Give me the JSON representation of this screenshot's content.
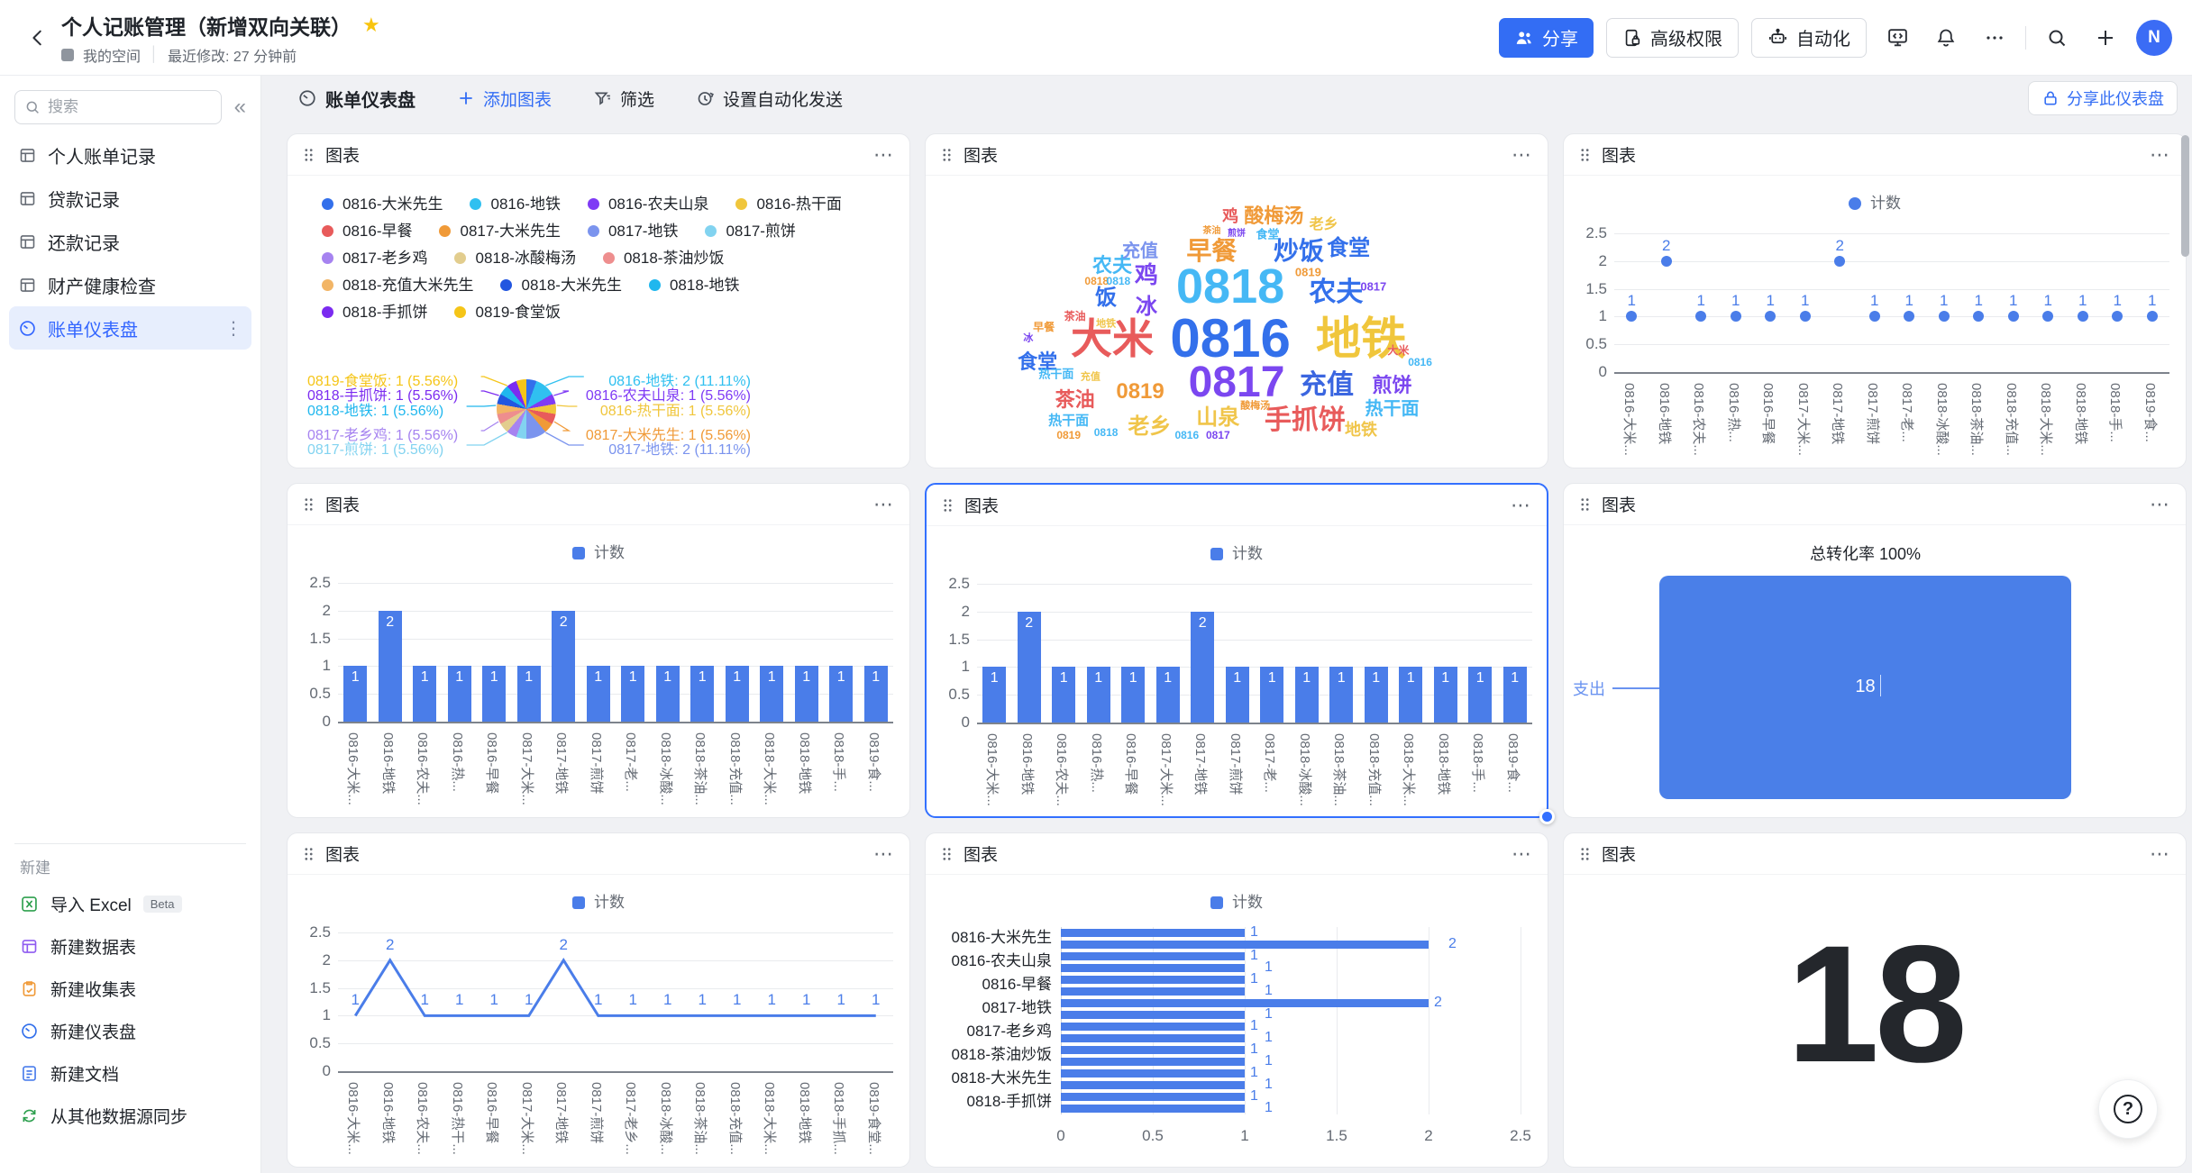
{
  "header": {
    "title": "个人记账管理（新增双向关联）",
    "space_label": "我的空间",
    "modified_label": "最近修改: 27 分钟前",
    "share_button": "分享",
    "perm_button": "高级权限",
    "automation_button": "自动化",
    "avatar_text": "N",
    "accent_color": "#336df4"
  },
  "sidebar": {
    "search_placeholder": "搜索",
    "tables": [
      "个人账单记录",
      "贷款记录",
      "还款记录",
      "财产健康检查"
    ],
    "dashboard_item": "账单仪表盘",
    "new_label": "新建",
    "new_items": [
      {
        "label": "导入 Excel",
        "badge": "Beta"
      },
      {
        "label": "新建数据表"
      },
      {
        "label": "新建收集表"
      },
      {
        "label": "新建仪表盘"
      },
      {
        "label": "新建文档"
      },
      {
        "label": "从其他数据源同步"
      }
    ]
  },
  "toolbar": {
    "title": "账单仪表盘",
    "add_chart": "添加图表",
    "filter": "筛选",
    "autosend": "设置自动化发送",
    "share_dash": "分享此仪表盘"
  },
  "cards": [
    {
      "title": "图表"
    },
    {
      "title": "图表"
    },
    {
      "title": "图表"
    },
    {
      "title": "图表"
    },
    {
      "title": "图表"
    },
    {
      "title": "图表"
    },
    {
      "title": "图表"
    },
    {
      "title": "图表"
    },
    {
      "title": "图表"
    }
  ],
  "chart_data": [
    {
      "type": "pie",
      "legend_rows": [
        [
          {
            "label": "0816-大米先生",
            "color": "#3370eb"
          },
          {
            "label": "0816-地铁",
            "color": "#30c0f0"
          },
          {
            "label": "0816-农夫山泉",
            "color": "#7f3bf5"
          },
          {
            "label": "0816-热干面",
            "color": "#f0c63c"
          }
        ],
        [
          {
            "label": "0816-早餐",
            "color": "#e85b5b"
          },
          {
            "label": "0817-大米先生",
            "color": "#f09a38"
          },
          {
            "label": "0817-地铁",
            "color": "#7b94ee"
          },
          {
            "label": "0817-煎饼",
            "color": "#82d3f0"
          }
        ],
        [
          {
            "label": "0817-老乡鸡",
            "color": "#a683f0"
          },
          {
            "label": "0818-冰酸梅汤",
            "color": "#e2cd8e"
          },
          {
            "label": "0818-茶油炒饭",
            "color": "#ee8e8e"
          }
        ],
        [
          {
            "label": "0818-充值大米先生",
            "color": "#f2b566"
          },
          {
            "label": "0818-大米先生",
            "color": "#2256e0"
          },
          {
            "label": "0818-地铁",
            "color": "#20b7ee"
          }
        ],
        [
          {
            "label": "0818-手抓饼",
            "color": "#7b2bf0"
          },
          {
            "label": "0819-食堂饭",
            "color": "#f5c518"
          }
        ]
      ],
      "slices": [
        {
          "label": "0816-大米先生",
          "value": 1,
          "color": "#3370eb"
        },
        {
          "label": "0816-地铁",
          "value": 2,
          "color": "#30c0f0"
        },
        {
          "label": "0816-农夫山泉",
          "value": 1,
          "color": "#7f3bf5"
        },
        {
          "label": "0816-热干面",
          "value": 1,
          "color": "#f0c63c"
        },
        {
          "label": "0816-早餐",
          "value": 1,
          "color": "#e85b5b"
        },
        {
          "label": "0817-大米先生",
          "value": 1,
          "color": "#f09a38"
        },
        {
          "label": "0817-地铁",
          "value": 2,
          "color": "#7b94ee"
        },
        {
          "label": "0817-煎饼",
          "value": 1,
          "color": "#82d3f0"
        },
        {
          "label": "0817-老乡鸡",
          "value": 1,
          "color": "#a683f0"
        },
        {
          "label": "0818-冰酸梅汤",
          "value": 1,
          "color": "#e2cd8e"
        },
        {
          "label": "0818-茶油炒饭",
          "value": 1,
          "color": "#ee8e8e"
        },
        {
          "label": "0818-充值大米先生",
          "value": 1,
          "color": "#f2b566"
        },
        {
          "label": "0818-大米先生",
          "value": 1,
          "color": "#2256e0"
        },
        {
          "label": "0818-地铁",
          "value": 1,
          "color": "#20b7ee"
        },
        {
          "label": "0818-手抓饼",
          "value": 1,
          "color": "#7b2bf0"
        },
        {
          "label": "0819-食堂饭",
          "value": 1,
          "color": "#f5c518"
        }
      ],
      "callouts_left": [
        {
          "text": "0819-食堂饭: 1 (5.56%)",
          "color": "#f5c518"
        },
        {
          "text": "0818-手抓饼: 1 (5.56%)",
          "color": "#7b2bf0"
        },
        {
          "text": "0818-地铁: 1 (5.56%)",
          "color": "#20b7ee"
        },
        {
          "text": "0817-老乡鸡: 1 (5.56%)",
          "color": "#a683f0"
        },
        {
          "text": "0817-煎饼: 1 (5.56%)",
          "color": "#82d3f0"
        }
      ],
      "callouts_right": [
        {
          "text": "0816-地铁: 2 (11.11%)",
          "color": "#30c0f0"
        },
        {
          "text": "0816-农夫山泉: 1 (5.56%)",
          "color": "#7f3bf5"
        },
        {
          "text": "0816-热干面: 1 (5.56%)",
          "color": "#f0c63c"
        },
        {
          "text": "0817-大米先生: 1 (5.56%)",
          "color": "#f09a38"
        },
        {
          "text": "0817-地铁: 2 (11.11%)",
          "color": "#7b94ee"
        }
      ]
    },
    {
      "type": "wordcloud",
      "words": [
        {
          "t": "0818",
          "x": 49,
          "y": 38,
          "s": 54,
          "c": "#45b8f5"
        },
        {
          "t": "0816",
          "x": 49,
          "y": 56,
          "s": 60,
          "c": "#3370eb"
        },
        {
          "t": "地铁",
          "x": 70,
          "y": 56,
          "s": 50,
          "c": "#f0c63c"
        },
        {
          "t": "大米",
          "x": 30,
          "y": 56,
          "s": 46,
          "c": "#e85b5b"
        },
        {
          "t": "0817",
          "x": 50,
          "y": 71,
          "s": 48,
          "c": "#7b47f0"
        },
        {
          "t": "充值",
          "x": 64.5,
          "y": 72,
          "s": 30,
          "c": "#3b66e0"
        },
        {
          "t": "手抓饼",
          "x": 61,
          "y": 84,
          "s": 30,
          "c": "#e85b5b"
        },
        {
          "t": "早餐",
          "x": 46,
          "y": 26,
          "s": 28,
          "c": "#f09a38"
        },
        {
          "t": "炒饭",
          "x": 60,
          "y": 26,
          "s": 28,
          "c": "#3370eb"
        },
        {
          "t": "食堂",
          "x": 68,
          "y": 25,
          "s": 24,
          "c": "#3370eb"
        },
        {
          "t": "农夫",
          "x": 66,
          "y": 40,
          "s": 30,
          "c": "#3370eb"
        },
        {
          "t": "鸡",
          "x": 35.5,
          "y": 34,
          "s": 26,
          "c": "#7b47f0"
        },
        {
          "t": "冰",
          "x": 35.5,
          "y": 45,
          "s": 24,
          "c": "#7b47f0"
        },
        {
          "t": "饭",
          "x": 29,
          "y": 42,
          "s": 24,
          "c": "#3370eb"
        },
        {
          "t": "农夫",
          "x": 30,
          "y": 31,
          "s": 22,
          "c": "#45b8f5"
        },
        {
          "t": "充值",
          "x": 34.5,
          "y": 26,
          "s": 20,
          "c": "#7b94ee"
        },
        {
          "t": "食堂",
          "x": 18,
          "y": 64,
          "s": 22,
          "c": "#3370eb"
        },
        {
          "t": "茶油",
          "x": 24,
          "y": 77,
          "s": 22,
          "c": "#e85b5b"
        },
        {
          "t": "0819",
          "x": 34.5,
          "y": 74,
          "s": 24,
          "c": "#f09a38"
        },
        {
          "t": "山泉",
          "x": 47,
          "y": 83,
          "s": 24,
          "c": "#f0c54a"
        },
        {
          "t": "老乡",
          "x": 36,
          "y": 86,
          "s": 24,
          "c": "#f0c54a"
        },
        {
          "t": "煎饼",
          "x": 75,
          "y": 72,
          "s": 22,
          "c": "#7b47f0"
        },
        {
          "t": "热干面",
          "x": 75,
          "y": 80,
          "s": 20,
          "c": "#45b8f5"
        },
        {
          "t": "地铁",
          "x": 70,
          "y": 87,
          "s": 18,
          "c": "#f0c54a"
        },
        {
          "t": "热干面",
          "x": 21,
          "y": 68,
          "s": 13,
          "c": "#45b8f5"
        },
        {
          "t": "热干面",
          "x": 23,
          "y": 84,
          "s": 15,
          "c": "#45b8f5"
        },
        {
          "t": "酸梅汤",
          "x": 56,
          "y": 14,
          "s": 22,
          "c": "#f09a38"
        },
        {
          "t": "鸡",
          "x": 49,
          "y": 14,
          "s": 18,
          "c": "#e85b5b"
        },
        {
          "t": "老乡",
          "x": 64,
          "y": 17,
          "s": 16,
          "c": "#f0c54a"
        },
        {
          "t": "食堂",
          "x": 55,
          "y": 20,
          "s": 13,
          "c": "#45b8f5"
        },
        {
          "t": "早餐",
          "x": 19,
          "y": 52,
          "s": 12,
          "c": "#f09a38"
        },
        {
          "t": "冰",
          "x": 16.5,
          "y": 56,
          "s": 11,
          "c": "#7b47f0"
        },
        {
          "t": "大米",
          "x": 76,
          "y": 60,
          "s": 12,
          "c": "#e85b5b"
        },
        {
          "t": "0816",
          "x": 79.5,
          "y": 64,
          "s": 12,
          "c": "#45b8f5"
        },
        {
          "t": "0818",
          "x": 27.5,
          "y": 36,
          "s": 12,
          "c": "#f09a38"
        },
        {
          "t": "0818",
          "x": 31,
          "y": 36,
          "s": 12,
          "c": "#45b8f5"
        },
        {
          "t": "0819",
          "x": 61.5,
          "y": 33,
          "s": 13,
          "c": "#f09a38"
        },
        {
          "t": "0817",
          "x": 72,
          "y": 38,
          "s": 13,
          "c": "#7b47f0"
        },
        {
          "t": "0816",
          "x": 42,
          "y": 89,
          "s": 12,
          "c": "#45b8f5"
        },
        {
          "t": "0817",
          "x": 47,
          "y": 89,
          "s": 12,
          "c": "#7b47f0"
        },
        {
          "t": "0818",
          "x": 29,
          "y": 88,
          "s": 12,
          "c": "#45b8f5"
        },
        {
          "t": "0819",
          "x": 23,
          "y": 89,
          "s": 12,
          "c": "#f09a38"
        },
        {
          "t": "茶油",
          "x": 24,
          "y": 48,
          "s": 12,
          "c": "#e85b5b"
        },
        {
          "t": "地铁",
          "x": 29,
          "y": 51,
          "s": 11,
          "c": "#f0c54a"
        },
        {
          "t": "充值",
          "x": 26.5,
          "y": 69,
          "s": 11,
          "c": "#f0c54a"
        },
        {
          "t": "酸梅汤",
          "x": 53,
          "y": 79,
          "s": 11,
          "c": "#f09a38"
        },
        {
          "t": "煎饼",
          "x": 50,
          "y": 20,
          "s": 10,
          "c": "#7b47f0"
        },
        {
          "t": "茶油",
          "x": 46,
          "y": 19,
          "s": 10,
          "c": "#f09a38"
        }
      ]
    },
    {
      "type": "scatter",
      "legend": "计数",
      "categories": [
        "0816-大米先生",
        "0816-地铁",
        "0816-农夫山泉",
        "0816-热干面",
        "0816-早餐",
        "0817-大米先生",
        "0817-地铁",
        "0817-煎饼",
        "0817-老乡鸡",
        "0818-冰酸梅汤",
        "0818-茶油炒饭",
        "0818-充值大米先生",
        "0818-大米先生",
        "0818-地铁",
        "0818-手抓饼",
        "0819-食堂饭"
      ],
      "categories_display": [
        "0816-大米...",
        "0816-地铁",
        "0816-农夫...",
        "0816-热...",
        "0816-早餐",
        "0817-大米...",
        "0817-地铁",
        "0817-煎饼",
        "0817-老...",
        "0818-冰酸...",
        "0818-茶油...",
        "0818-充值...",
        "0818-大米...",
        "0818-地铁",
        "0818-手...",
        "0819-食..."
      ],
      "values": [
        1,
        2,
        1,
        1,
        1,
        1,
        2,
        1,
        1,
        1,
        1,
        1,
        1,
        1,
        1,
        1
      ],
      "yticks": [
        0,
        0.5,
        1,
        1.5,
        2,
        2.5
      ]
    },
    {
      "type": "bar",
      "legend": "计数",
      "categories_display": [
        "0816-大米...",
        "0816-地铁",
        "0816-农夫...",
        "0816-热...",
        "0816-早餐",
        "0817-大米...",
        "0817-地铁",
        "0817-煎饼",
        "0817-老...",
        "0818-冰酸...",
        "0818-茶油...",
        "0818-充值...",
        "0818-大米...",
        "0818-地铁",
        "0818-手...",
        "0819-食..."
      ],
      "values": [
        1,
        2,
        1,
        1,
        1,
        1,
        2,
        1,
        1,
        1,
        1,
        1,
        1,
        1,
        1,
        1
      ],
      "yticks": [
        0,
        0.5,
        1,
        1.5,
        2,
        2.5
      ]
    },
    {
      "type": "bar",
      "selected": true,
      "legend": "计数",
      "categories_display": [
        "0816-大米...",
        "0816-地铁",
        "0816-农夫...",
        "0816-热...",
        "0816-早餐",
        "0817-大米...",
        "0817-地铁",
        "0817-煎饼",
        "0817-老...",
        "0818-冰酸...",
        "0818-茶油...",
        "0818-充值...",
        "0818-大米...",
        "0818-地铁",
        "0818-手...",
        "0819-食..."
      ],
      "values": [
        1,
        2,
        1,
        1,
        1,
        1,
        2,
        1,
        1,
        1,
        1,
        1,
        1,
        1,
        1,
        1
      ],
      "yticks": [
        0,
        0.5,
        1,
        1.5,
        2,
        2.5
      ]
    },
    {
      "type": "funnel",
      "title": "总转化率 100%",
      "stage": "支出",
      "value": "18"
    },
    {
      "type": "line",
      "legend": "计数",
      "categories_display": [
        "0816-大米...",
        "0816-地铁",
        "0816-农夫...",
        "0816-热干...",
        "0816-早餐",
        "0817-大米...",
        "0817-地铁",
        "0817-煎饼",
        "0817-老乡...",
        "0818-冰酸...",
        "0818-茶油...",
        "0818-充值...",
        "0818-大米...",
        "0818-地铁",
        "0818-手抓...",
        "0819-食堂..."
      ],
      "values": [
        1,
        2,
        1,
        1,
        1,
        1,
        2,
        1,
        1,
        1,
        1,
        1,
        1,
        1,
        1,
        1
      ],
      "yticks": [
        0,
        0.5,
        1,
        1.5,
        2,
        2.5
      ]
    },
    {
      "type": "hbar",
      "legend": "计数",
      "categories": [
        "0816-大米先生",
        "0816-地铁",
        "0816-农夫山泉",
        "0816-热干面",
        "0816-早餐",
        "0817-大米先生",
        "0817-地铁",
        "0817-煎饼",
        "0817-老乡鸡",
        "0818-冰酸梅汤",
        "0818-茶油炒饭",
        "0818-充值大米先生",
        "0818-大米先生",
        "0818-地铁",
        "0818-手抓饼",
        "0819-食堂饭"
      ],
      "axis_labels_shown": [
        "0816-大米先生",
        "0816-农夫山泉",
        "0816-早餐",
        "0817-地铁",
        "0817-老乡鸡",
        "0818-茶油炒饭",
        "0818-大米先生",
        "0818-手抓饼"
      ],
      "values": [
        1,
        2,
        1,
        1,
        1,
        1,
        2,
        1,
        1,
        1,
        1,
        1,
        1,
        1,
        1,
        1
      ],
      "xticks": [
        0,
        0.5,
        1,
        1.5,
        2,
        2.5
      ]
    },
    {
      "type": "number",
      "value": "18"
    }
  ],
  "misc": {
    "chart_blue": "#4a7de9",
    "help_icon": "?"
  }
}
